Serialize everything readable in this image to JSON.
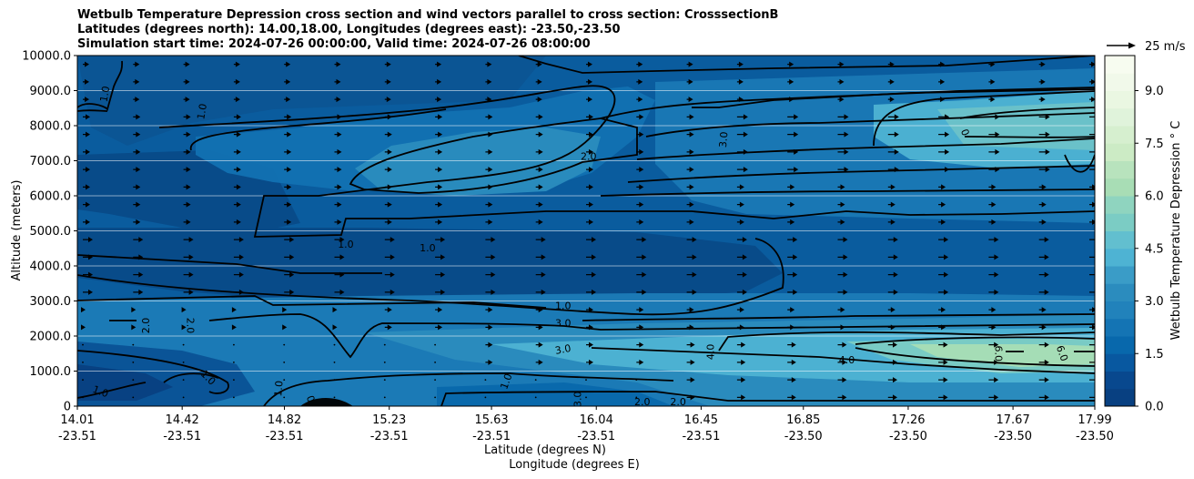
{
  "chart_data": {
    "type": "contour",
    "title": [
      "Wetbulb Temperature Depression cross section and wind vectors parallel to cross section: CrosssectionB",
      "Latitudes (degrees north): 14.00,18.00, Longitudes (degrees east): -23.50,-23.50",
      "Simulation start time: 2024-07-26 00:00:00, Valid time: 2024-07-26 08:00:00"
    ],
    "xlabel": "Latitude (degrees N)",
    "xlabel2": "Longitude (degrees E)",
    "ylabel": "Altitude (meters)",
    "colorbar_label": "Wetbulb Temperature Depression ° C",
    "quiver_key": "25 m/s",
    "xlim": [
      14.01,
      17.99
    ],
    "ylim": [
      0,
      10000
    ],
    "x_ticks": [
      {
        "lat": "14.01",
        "lon": "-23.51",
        "value": 14.01
      },
      {
        "lat": "14.42",
        "lon": "-23.51",
        "value": 14.42
      },
      {
        "lat": "14.82",
        "lon": "-23.51",
        "value": 14.82
      },
      {
        "lat": "15.23",
        "lon": "-23.51",
        "value": 15.23
      },
      {
        "lat": "15.63",
        "lon": "-23.51",
        "value": 15.63
      },
      {
        "lat": "16.04",
        "lon": "-23.51",
        "value": 16.04
      },
      {
        "lat": "16.45",
        "lon": "-23.51",
        "value": 16.45
      },
      {
        "lat": "16.85",
        "lon": "-23.50",
        "value": 16.85
      },
      {
        "lat": "17.26",
        "lon": "-23.50",
        "value": 17.26
      },
      {
        "lat": "17.67",
        "lon": "-23.50",
        "value": 17.67
      },
      {
        "lat": "17.99",
        "lon": "-23.50",
        "value": 17.99
      }
    ],
    "y_ticks": [
      {
        "label": "0",
        "value": 0
      },
      {
        "label": "1000.0",
        "value": 1000
      },
      {
        "label": "2000.0",
        "value": 2000
      },
      {
        "label": "3000.0",
        "value": 3000
      },
      {
        "label": "4000.0",
        "value": 4000
      },
      {
        "label": "5000.0",
        "value": 5000
      },
      {
        "label": "6000.0",
        "value": 6000
      },
      {
        "label": "7000.0",
        "value": 7000
      },
      {
        "label": "8000.0",
        "value": 8000
      },
      {
        "label": "9000.0",
        "value": 9000
      },
      {
        "label": "10000.0",
        "value": 10000
      }
    ],
    "colorbar_range": [
      0,
      10
    ],
    "colorbar_ticks": [
      {
        "label": "0.0",
        "value": 0
      },
      {
        "label": "1.5",
        "value": 1.5
      },
      {
        "label": "3.0",
        "value": 3.0
      },
      {
        "label": "4.5",
        "value": 4.5
      },
      {
        "label": "6.0",
        "value": 6.0
      },
      {
        "label": "7.5",
        "value": 7.5
      },
      {
        "label": "9.0",
        "value": 9.0
      }
    ],
    "colorbar_colors": [
      "#084081",
      "#0868ac",
      "#2b8cbe",
      "#4eb3d3",
      "#7bccc4",
      "#a8ddb5",
      "#ccebc5",
      "#e0f3db",
      "#f7fcf0"
    ],
    "contour_levels": [
      1.0,
      2.0,
      3.0,
      4.0,
      6.0
    ],
    "contour_labels": [
      {
        "text": "1.0",
        "x": 14.12,
        "y": 8900,
        "rot": -80
      },
      {
        "text": "1.0",
        "x": 14.5,
        "y": 8400,
        "rot": -80
      },
      {
        "text": "2.0",
        "x": 16.01,
        "y": 7100,
        "rot": 0
      },
      {
        "text": "3.0",
        "x": 16.54,
        "y": 7600,
        "rot": -85
      },
      {
        "text": "0",
        "x": 17.48,
        "y": 7800,
        "rot": 70
      },
      {
        "text": "1.0",
        "x": 15.06,
        "y": 4600,
        "rot": 0
      },
      {
        "text": "1.0",
        "x": 15.38,
        "y": 4500,
        "rot": 0
      },
      {
        "text": "1.0",
        "x": 15.91,
        "y": 2850,
        "rot": 0
      },
      {
        "text": "3.0",
        "x": 15.91,
        "y": 2350,
        "rot": 0
      },
      {
        "text": "3.0",
        "x": 15.91,
        "y": 1600,
        "rot": -10
      },
      {
        "text": "2.0",
        "x": 14.28,
        "y": 2300,
        "rot": -90
      },
      {
        "text": "2.0",
        "x": 14.45,
        "y": 2300,
        "rot": 90
      },
      {
        "text": "1.0",
        "x": 14.52,
        "y": 800,
        "rot": 45
      },
      {
        "text": "1.0",
        "x": 14.1,
        "y": 400,
        "rot": 20
      },
      {
        "text": "1.0",
        "x": 14.8,
        "y": 500,
        "rot": -85
      },
      {
        "text": "1.0",
        "x": 15.69,
        "y": 700,
        "rot": -70
      },
      {
        "text": "0",
        "x": 14.92,
        "y": 200,
        "rot": 70
      },
      {
        "text": "3.0",
        "x": 15.97,
        "y": 200,
        "rot": -90
      },
      {
        "text": "4.0",
        "x": 16.49,
        "y": 1550,
        "rot": -90
      },
      {
        "text": "4.0",
        "x": 17.02,
        "y": 1300,
        "rot": 0
      },
      {
        "text": "6.0",
        "x": 17.61,
        "y": 1500,
        "rot": 90
      },
      {
        "text": "6.0",
        "x": 17.86,
        "y": 1500,
        "rot": 70
      },
      {
        "text": "2.0",
        "x": 16.22,
        "y": 100,
        "rot": 0
      },
      {
        "text": "2.0",
        "x": 16.36,
        "y": 100,
        "rot": 0
      }
    ]
  }
}
